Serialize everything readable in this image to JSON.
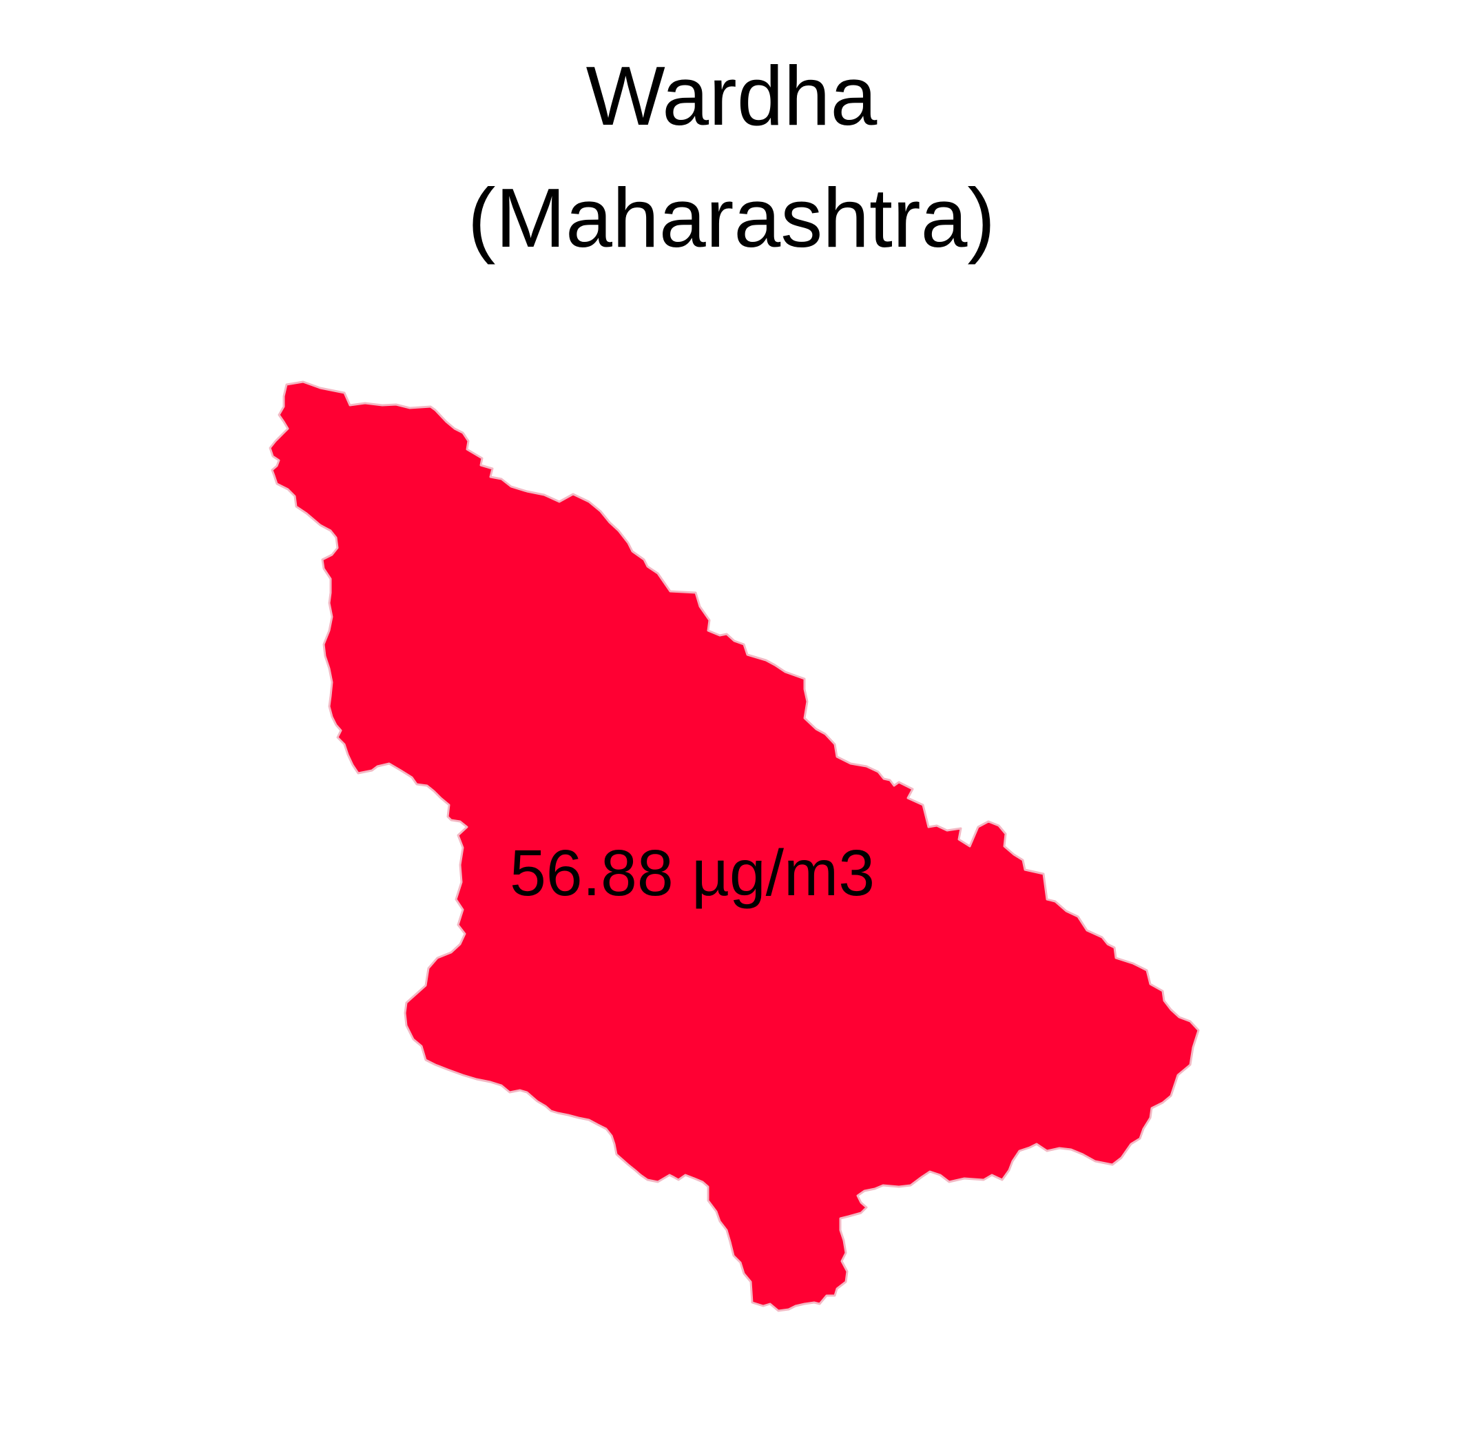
{
  "map": {
    "title": {
      "district": "Wardha",
      "state": "(Maharashtra)"
    },
    "region": {
      "name": "Wardha",
      "fill_color": "#FF0033",
      "border_color": "#F3B8C4"
    },
    "value_label": "56.88 µg/m3"
  }
}
